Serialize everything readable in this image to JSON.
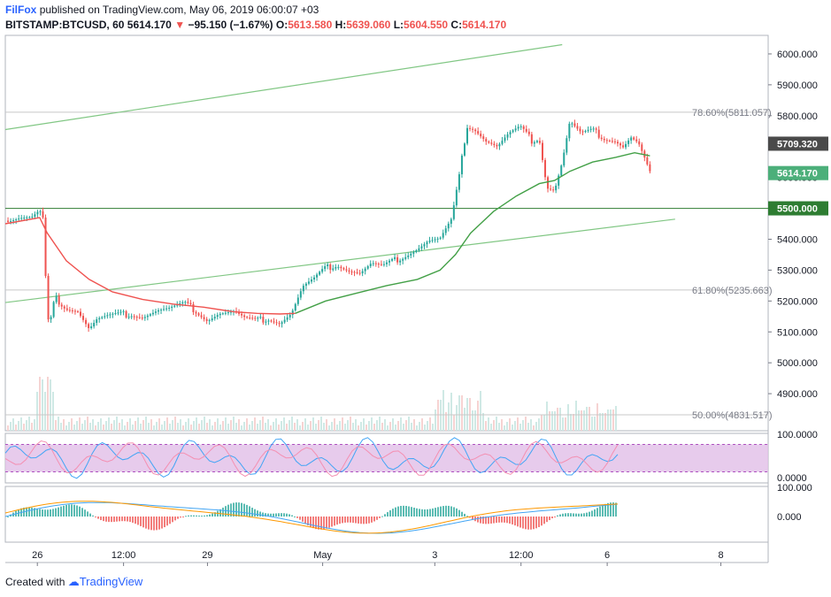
{
  "header": {
    "user": "FilFox",
    "published_text": "published on TradingView.com, May 06, 2019 06:00:07 +03",
    "symbol": "BITSTAMP:BTCUSD, 60",
    "last": "5614.170",
    "change": "−95.150 (−1.67%)",
    "o_label": "O:",
    "o_value": "5613.580",
    "h_label": "H:",
    "h_value": "5639.060",
    "l_label": "L:",
    "l_value": "5604.550",
    "c_label": "C:",
    "c_value": "5614.170"
  },
  "footer": {
    "created_with": "Created with",
    "brand": "TradingView"
  },
  "colors": {
    "up": "#26a69a",
    "down": "#ef5350",
    "ema_red": "#ef5350",
    "ema_green": "#43a047",
    "trendline": "#81c784",
    "rsi_band": "#e1bee7",
    "macd_blue": "#42a5f5",
    "macd_orange": "#ff9800"
  },
  "chart_data": {
    "type": "candlestick",
    "symbol": "BITSTAMP:BTCUSD",
    "interval": "60",
    "ylim": [
      4780,
      6060
    ],
    "y_ticks": [
      "6000.000",
      "5900.000",
      "5800.000",
      "5700.000",
      "5600.000",
      "5500.000",
      "5400.000",
      "5300.000",
      "5200.000",
      "5100.000",
      "5000.000",
      "4900.000"
    ],
    "x_ticks": [
      "26",
      "12:00",
      "29",
      "May",
      "3",
      "12:00",
      "6",
      "8"
    ],
    "price_labels": [
      {
        "text": "5709.320",
        "value": 5709.32,
        "style": "dark"
      },
      {
        "text": "5614.170",
        "value": 5614.17,
        "style": "green"
      },
      {
        "text": "5500.000",
        "value": 5500,
        "style": "darkgreen"
      }
    ],
    "fib_levels": [
      {
        "label": "78.60%(5811.057)",
        "value": 5811.057
      },
      {
        "label": "61.80%(5235.663)",
        "value": 5235.663
      },
      {
        "label": "50.00%(4831.517)",
        "value": 4831.517
      }
    ],
    "horizontal_line": 5500,
    "trendlines": [
      {
        "from": [
          0,
          5755
        ],
        "to": [
          0.73,
          6030
        ]
      },
      {
        "from": [
          0,
          5195
        ],
        "to": [
          0.878,
          5465
        ]
      }
    ],
    "close_path": [
      [
        0,
        5460
      ],
      [
        0.02,
        5470
      ],
      [
        0.035,
        5470
      ],
      [
        0.045,
        5490
      ],
      [
        0.05,
        5460
      ],
      [
        0.055,
        5130
      ],
      [
        0.06,
        5140
      ],
      [
        0.065,
        5210
      ],
      [
        0.08,
        5180
      ],
      [
        0.095,
        5170
      ],
      [
        0.11,
        5110
      ],
      [
        0.12,
        5140
      ],
      [
        0.135,
        5150
      ],
      [
        0.15,
        5155
      ],
      [
        0.165,
        5160
      ],
      [
        0.18,
        5150
      ],
      [
        0.2,
        5170
      ],
      [
        0.215,
        5175
      ],
      [
        0.235,
        5190
      ],
      [
        0.25,
        5170
      ],
      [
        0.265,
        5140
      ],
      [
        0.28,
        5160
      ],
      [
        0.3,
        5165
      ],
      [
        0.315,
        5140
      ],
      [
        0.33,
        5135
      ],
      [
        0.345,
        5145
      ],
      [
        0.36,
        5130
      ],
      [
        0.375,
        5160
      ],
      [
        0.39,
        5245
      ],
      [
        0.405,
        5270
      ],
      [
        0.42,
        5305
      ],
      [
        0.435,
        5320
      ],
      [
        0.45,
        5300
      ],
      [
        0.465,
        5290
      ],
      [
        0.48,
        5320
      ],
      [
        0.495,
        5310
      ],
      [
        0.51,
        5330
      ],
      [
        0.525,
        5350
      ],
      [
        0.54,
        5370
      ],
      [
        0.555,
        5395
      ],
      [
        0.57,
        5400
      ],
      [
        0.585,
        5460
      ],
      [
        0.595,
        5600
      ],
      [
        0.605,
        5770
      ],
      [
        0.615,
        5760
      ],
      [
        0.63,
        5720
      ],
      [
        0.645,
        5700
      ],
      [
        0.66,
        5740
      ],
      [
        0.675,
        5760
      ],
      [
        0.69,
        5720
      ],
      [
        0.7,
        5730
      ],
      [
        0.71,
        5570
      ],
      [
        0.72,
        5560
      ],
      [
        0.73,
        5650
      ],
      [
        0.74,
        5780
      ],
      [
        0.755,
        5740
      ],
      [
        0.77,
        5750
      ],
      [
        0.785,
        5730
      ],
      [
        0.8,
        5720
      ],
      [
        0.81,
        5700
      ],
      [
        0.82,
        5730
      ],
      [
        0.83,
        5710
      ],
      [
        0.838,
        5660
      ],
      [
        0.845,
        5614
      ]
    ],
    "ema_fast_path": [
      [
        0,
        5450
      ],
      [
        0.045,
        5470
      ],
      [
        0.055,
        5420
      ],
      [
        0.08,
        5330
      ],
      [
        0.11,
        5270
      ],
      [
        0.14,
        5230
      ],
      [
        0.18,
        5205
      ],
      [
        0.22,
        5190
      ],
      [
        0.26,
        5180
      ],
      [
        0.3,
        5165
      ],
      [
        0.33,
        5160
      ],
      [
        0.36,
        5158
      ],
      [
        0.38,
        5160
      ]
    ],
    "ema_slow_path": [
      [
        0.38,
        5160
      ],
      [
        0.42,
        5200
      ],
      [
        0.46,
        5225
      ],
      [
        0.5,
        5250
      ],
      [
        0.54,
        5270
      ],
      [
        0.57,
        5300
      ],
      [
        0.59,
        5350
      ],
      [
        0.61,
        5420
      ],
      [
        0.64,
        5490
      ],
      [
        0.67,
        5540
      ],
      [
        0.7,
        5580
      ],
      [
        0.72,
        5590
      ],
      [
        0.74,
        5620
      ],
      [
        0.77,
        5650
      ],
      [
        0.8,
        5665
      ],
      [
        0.825,
        5680
      ],
      [
        0.845,
        5670
      ]
    ],
    "rsi": {
      "ylim": [
        0,
        100
      ],
      "band": [
        20,
        80
      ],
      "tick_labels": [
        "100.0000",
        "0.0000"
      ]
    },
    "macd": {
      "tick_labels": [
        "100.000",
        "0.000"
      ]
    }
  }
}
